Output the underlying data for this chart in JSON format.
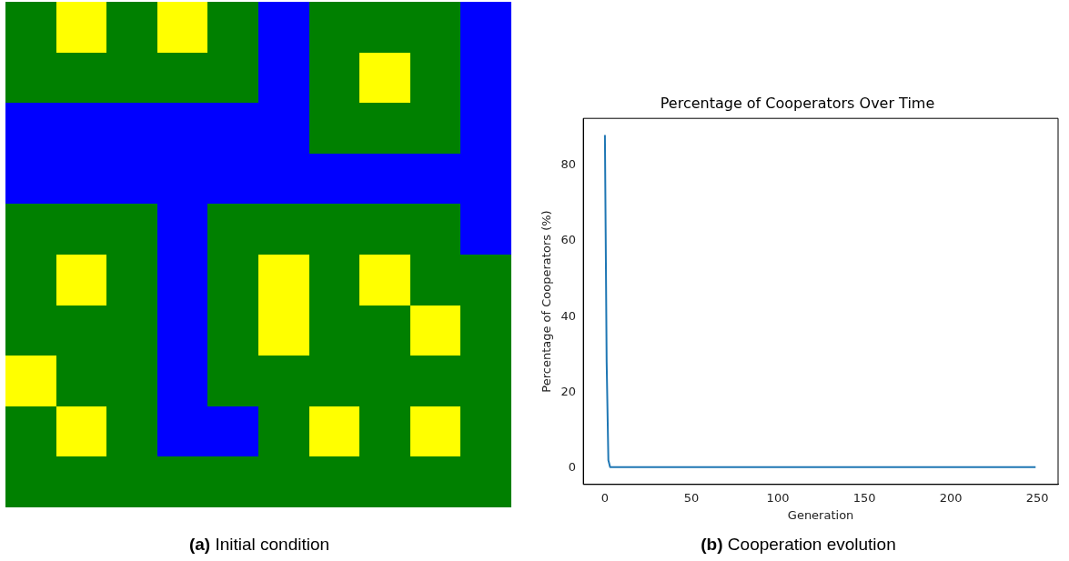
{
  "chart_data": [
    {
      "type": "other",
      "annotations": [
        "(a) Initial condition"
      ]
    },
    {
      "type": "line",
      "title": "Percentage of Cooperators Over Time",
      "xlabel": "Generation",
      "ylabel": "Percentage of Cooperators (%)",
      "annotations": [
        "(b) Cooperation evolution"
      ],
      "series": [
        {
          "color": "#1f77b4",
          "x": [
            0,
            1,
            2,
            3,
            249
          ],
          "values": [
            88,
            28,
            2,
            0.2,
            0.2
          ]
        }
      ],
      "xlim": [
        -12.5,
        262
      ],
      "ylim": [
        -4.4,
        92.4
      ],
      "xticks": [
        0,
        50,
        100,
        150,
        200,
        250
      ],
      "yticks": [
        0,
        20,
        40,
        60,
        80
      ],
      "grid": false,
      "legend": false
    }
  ]
}
